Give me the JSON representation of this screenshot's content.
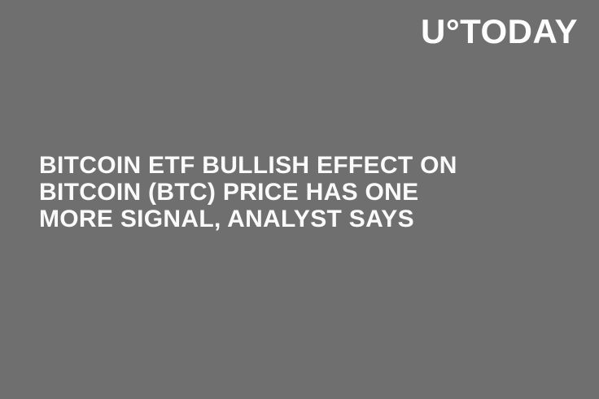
{
  "banner": {
    "logo_text": "U°TODAY",
    "headline": {
      "full_text": "BITCOIN ETF BULLISH EFFECT ON BITCOIN (BTC) PRICE HAS ONE MORE SIGNAL, ANALYST SAYS",
      "lines": [
        "BITCOIN ETF BULLISH EFFECT ON",
        "BITCOIN (BTC) PRICE HAS ONE",
        "MORE SIGNAL, ANALYST SAYS"
      ]
    },
    "colors": {
      "background": "#706F70",
      "logo": "#FCFCFC",
      "headline": "#FAFAFA"
    }
  }
}
